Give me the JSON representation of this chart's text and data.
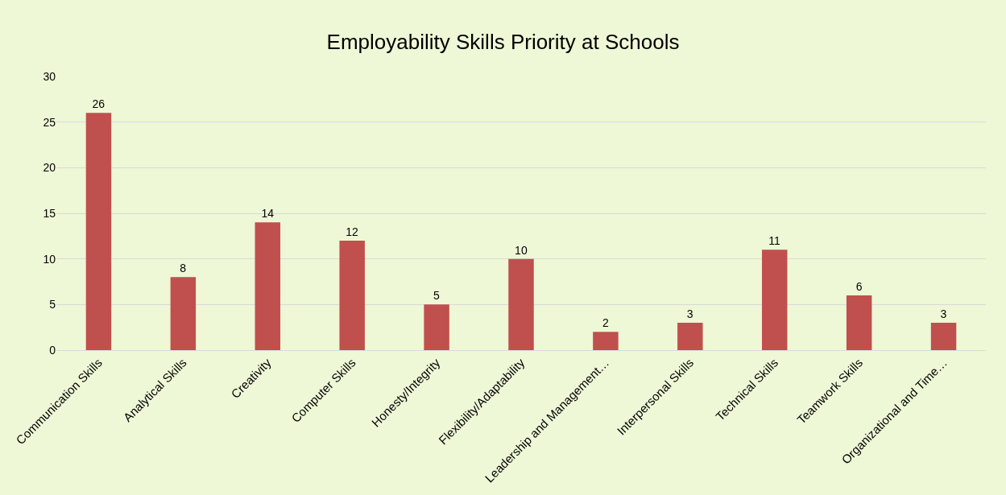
{
  "chart_data": {
    "type": "bar",
    "title": "Employability Skills Priority at Schools",
    "categories": [
      "Communication Skills",
      "Analytical Skills",
      "Creativity",
      "Computer Skills",
      "Honesty/Integrity",
      "Flexibility/Adaptability",
      "Leadership and Management…",
      "Interpersonal Skills",
      "Technical Skills",
      "Teamwork Skills",
      "Organizational and Time…"
    ],
    "values": [
      26,
      8,
      14,
      12,
      5,
      10,
      2,
      3,
      11,
      6,
      3
    ],
    "color": "#c0504d",
    "ylim": [
      0,
      30
    ],
    "yticks": [
      0,
      5,
      10,
      15,
      20,
      25,
      30
    ],
    "grid": "y",
    "data_labels": true,
    "legend": false
  }
}
